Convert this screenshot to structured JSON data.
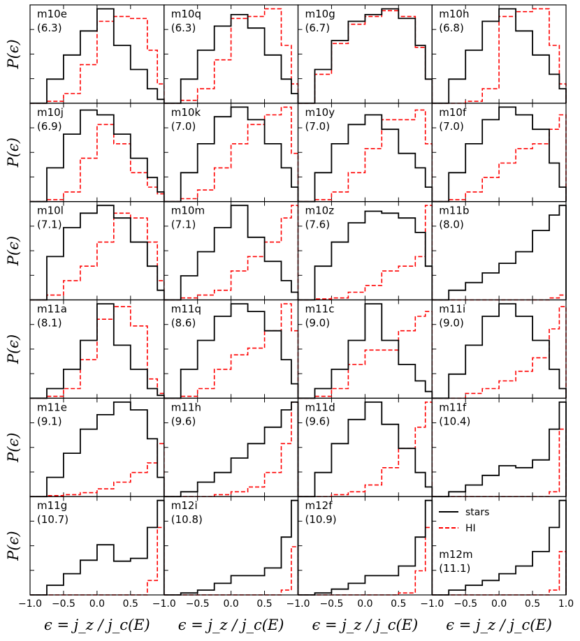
{
  "figure": {
    "xlabel": "ϵ = j_z / j_c(E)",
    "ylabel": "P(ϵ)",
    "legend": {
      "location": "top-left of bottom-right panel",
      "stars": "stars",
      "hi": "HI"
    }
  },
  "chart_data": {
    "type": "line",
    "layout": "grid 6 rows × 4 columns, shared axes",
    "xlim": [
      -1.0,
      1.0
    ],
    "x_ticks": [
      "−1.0",
      "−0.5",
      "0.0",
      "0.5",
      "1.0"
    ],
    "x_ticks_last_column": [
      "−1.0",
      "−0.5",
      "0.0",
      "0.5",
      "1.0"
    ],
    "x_ticks_other_columns": [
      "−1.0",
      "−0.5",
      "0.0",
      "0.5"
    ],
    "xlabel": "ϵ = j_z / j_c(E)",
    "ylabel": "P(ϵ)",
    "series_names": [
      "stars",
      "HI"
    ],
    "series_colors": {
      "stars": "#000000",
      "HI": "#ff0000"
    },
    "x": [
      -1.0,
      -0.75,
      -0.5,
      -0.25,
      0.0,
      0.25,
      0.5,
      0.75,
      0.9,
      1.0
    ],
    "panels": [
      {
        "name": "m10e",
        "sub": "(6.3)",
        "stars": [
          0.0,
          0.25,
          0.5,
          0.75,
          0.98,
          0.6,
          0.35,
          0.15,
          0.04,
          0.0
        ],
        "hi": [
          0.0,
          0.02,
          0.1,
          0.4,
          0.85,
          0.9,
          0.88,
          0.55,
          0.2,
          0.0
        ]
      },
      {
        "name": "m10q",
        "sub": "(6.3)",
        "stars": [
          0.0,
          0.25,
          0.55,
          0.8,
          0.92,
          0.78,
          0.5,
          0.25,
          0.1,
          0.0
        ],
        "hi": [
          0.0,
          0.03,
          0.15,
          0.45,
          0.88,
          0.9,
          0.98,
          0.6,
          0.2,
          0.0
        ]
      },
      {
        "name": "m10g",
        "sub": "(6.7)",
        "stars": [
          0.0,
          0.35,
          0.65,
          0.85,
          0.92,
          0.98,
          0.88,
          0.6,
          0.25,
          0.0
        ],
        "hi": [
          0.0,
          0.3,
          0.62,
          0.82,
          0.9,
          0.96,
          0.9,
          0.58,
          0.25,
          0.0
        ]
      },
      {
        "name": "m10h",
        "sub": "(6.8)",
        "stars": [
          0.0,
          0.25,
          0.55,
          0.85,
          0.98,
          0.75,
          0.5,
          0.3,
          0.15,
          0.0
        ],
        "hi": [
          0.0,
          0.0,
          0.02,
          0.15,
          0.9,
          0.95,
          0.98,
          0.6,
          0.2,
          0.0
        ]
      },
      {
        "name": "m10j",
        "sub": "(6.9)",
        "stars": [
          0.0,
          0.35,
          0.7,
          0.95,
          0.9,
          0.7,
          0.45,
          0.25,
          0.1,
          0.0
        ],
        "hi": [
          0.0,
          0.02,
          0.1,
          0.45,
          0.8,
          0.6,
          0.3,
          0.15,
          0.08,
          0.0
        ]
      },
      {
        "name": "m10k",
        "sub": "(7.0)",
        "stars": [
          0.0,
          0.3,
          0.6,
          0.88,
          0.98,
          0.85,
          0.6,
          0.35,
          0.15,
          0.0
        ],
        "hi": [
          0.0,
          0.03,
          0.12,
          0.35,
          0.6,
          0.8,
          0.9,
          0.98,
          0.5,
          0.0
        ]
      },
      {
        "name": "m10y",
        "sub": "(7.0)",
        "stars": [
          0.0,
          0.3,
          0.6,
          0.8,
          0.9,
          0.75,
          0.5,
          0.35,
          0.15,
          0.0
        ],
        "hi": [
          0.0,
          0.02,
          0.1,
          0.3,
          0.55,
          0.85,
          0.85,
          0.95,
          0.6,
          0.0
        ]
      },
      {
        "name": "m10f",
        "sub": "(7.0)",
        "stars": [
          0.0,
          0.3,
          0.6,
          0.85,
          0.98,
          0.9,
          0.75,
          0.4,
          0.15,
          0.0
        ],
        "hi": [
          0.0,
          0.02,
          0.1,
          0.25,
          0.4,
          0.55,
          0.6,
          0.75,
          0.9,
          0.0
        ]
      },
      {
        "name": "m10l",
        "sub": "(7.1)",
        "stars": [
          0.0,
          0.45,
          0.75,
          0.9,
          0.98,
          0.85,
          0.6,
          0.35,
          0.1,
          0.0
        ],
        "hi": [
          0.0,
          0.05,
          0.2,
          0.35,
          0.6,
          0.9,
          0.85,
          0.6,
          0.2,
          0.0
        ]
      },
      {
        "name": "m10m",
        "sub": "(7.1)",
        "stars": [
          0.0,
          0.25,
          0.5,
          0.75,
          0.98,
          0.65,
          0.4,
          0.2,
          0.08,
          0.0
        ],
        "hi": [
          0.0,
          0.02,
          0.05,
          0.1,
          0.3,
          0.45,
          0.6,
          0.85,
          0.98,
          0.0
        ]
      },
      {
        "name": "m10z",
        "sub": "(7.6)",
        "stars": [
          0.0,
          0.35,
          0.6,
          0.8,
          0.92,
          0.9,
          0.85,
          0.7,
          0.35,
          0.0
        ],
        "hi": [
          0.0,
          0.01,
          0.02,
          0.08,
          0.15,
          0.3,
          0.35,
          0.45,
          0.98,
          0.0
        ]
      },
      {
        "name": "m11b",
        "sub": "(8.0)",
        "stars": [
          0.0,
          0.1,
          0.18,
          0.28,
          0.38,
          0.5,
          0.72,
          0.88,
          0.98,
          0.0
        ],
        "hi": [
          0.0,
          0.0,
          0.0,
          0.0,
          0.0,
          0.0,
          0.0,
          0.02,
          0.05,
          0.0
        ]
      },
      {
        "name": "m11a",
        "sub": "(8.1)",
        "stars": [
          0.0,
          0.1,
          0.3,
          0.6,
          0.98,
          0.55,
          0.3,
          0.1,
          0.03,
          0.0
        ],
        "hi": [
          0.0,
          0.02,
          0.1,
          0.4,
          0.82,
          0.95,
          0.75,
          0.2,
          0.05,
          0.0
        ]
      },
      {
        "name": "m11q",
        "sub": "(8.6)",
        "stars": [
          0.0,
          0.3,
          0.6,
          0.85,
          0.98,
          0.9,
          0.7,
          0.4,
          0.15,
          0.0
        ],
        "hi": [
          0.0,
          0.02,
          0.1,
          0.3,
          0.45,
          0.52,
          0.7,
          0.98,
          0.7,
          0.0
        ]
      },
      {
        "name": "m11c",
        "sub": "(9.0)",
        "stars": [
          0.0,
          0.1,
          0.3,
          0.6,
          0.98,
          0.6,
          0.35,
          0.18,
          0.07,
          0.0
        ],
        "hi": [
          0.0,
          0.02,
          0.1,
          0.35,
          0.5,
          0.5,
          0.7,
          0.85,
          0.9,
          0.0
        ]
      },
      {
        "name": "m11i",
        "sub": "(9.0)",
        "stars": [
          0.0,
          0.25,
          0.55,
          0.85,
          0.98,
          0.85,
          0.6,
          0.3,
          0.1,
          0.0
        ],
        "hi": [
          0.0,
          0.0,
          0.05,
          0.1,
          0.18,
          0.28,
          0.42,
          0.72,
          0.95,
          0.0
        ]
      },
      {
        "name": "m11e",
        "sub": "(9.1)",
        "stars": [
          0.0,
          0.2,
          0.45,
          0.7,
          0.85,
          0.98,
          0.9,
          0.6,
          0.2,
          0.0
        ],
        "hi": [
          0.0,
          0.01,
          0.02,
          0.04,
          0.08,
          0.15,
          0.25,
          0.35,
          0.55,
          0.0
        ]
      },
      {
        "name": "m11h",
        "sub": "(9.6)",
        "stars": [
          0.0,
          0.05,
          0.15,
          0.25,
          0.4,
          0.55,
          0.72,
          0.9,
          0.98,
          0.0
        ],
        "hi": [
          0.0,
          0.0,
          0.0,
          0.02,
          0.05,
          0.1,
          0.25,
          0.55,
          0.98,
          0.0
        ]
      },
      {
        "name": "m11d",
        "sub": "(9.6)",
        "stars": [
          0.0,
          0.25,
          0.55,
          0.8,
          0.98,
          0.75,
          0.5,
          0.25,
          0.1,
          0.0
        ],
        "hi": [
          0.0,
          0.0,
          0.02,
          0.05,
          0.12,
          0.3,
          0.5,
          0.72,
          0.98,
          0.0
        ]
      },
      {
        "name": "m11f",
        "sub": "(10.4)",
        "stars": [
          0.0,
          0.05,
          0.12,
          0.22,
          0.32,
          0.3,
          0.38,
          0.7,
          0.98,
          0.0
        ],
        "hi": [
          0.0,
          0.0,
          0.0,
          0.0,
          0.0,
          0.0,
          0.0,
          0.05,
          0.7,
          0.0
        ]
      },
      {
        "name": "m11g",
        "sub": "(10.7)",
        "stars": [
          0.0,
          0.1,
          0.22,
          0.36,
          0.52,
          0.35,
          0.38,
          0.7,
          0.98,
          0.0
        ],
        "hi": [
          0.0,
          0.0,
          0.0,
          0.0,
          0.0,
          0.0,
          0.0,
          0.15,
          0.7,
          0.0
        ]
      },
      {
        "name": "m12i",
        "sub": "(10.8)",
        "stars": [
          0.0,
          0.02,
          0.05,
          0.12,
          0.2,
          0.2,
          0.28,
          0.6,
          0.98,
          0.0
        ],
        "hi": [
          0.0,
          0.0,
          0.0,
          0.0,
          0.0,
          0.0,
          0.0,
          0.05,
          0.5,
          0.0
        ]
      },
      {
        "name": "m12f",
        "sub": "(10.9)",
        "stars": [
          0.0,
          0.02,
          0.06,
          0.12,
          0.2,
          0.2,
          0.3,
          0.6,
          0.98,
          0.0
        ],
        "hi": [
          0.0,
          0.0,
          0.0,
          0.0,
          0.0,
          0.0,
          0.02,
          0.25,
          0.7,
          0.0
        ]
      },
      {
        "name": "m12m",
        "sub": "(11.1)",
        "stars": [
          0.0,
          0.05,
          0.1,
          0.15,
          0.22,
          0.3,
          0.45,
          0.7,
          0.98,
          0.0
        ],
        "hi": [
          0.0,
          0.0,
          0.0,
          0.0,
          0.0,
          0.0,
          0.0,
          0.05,
          0.45,
          0.0
        ]
      }
    ]
  }
}
